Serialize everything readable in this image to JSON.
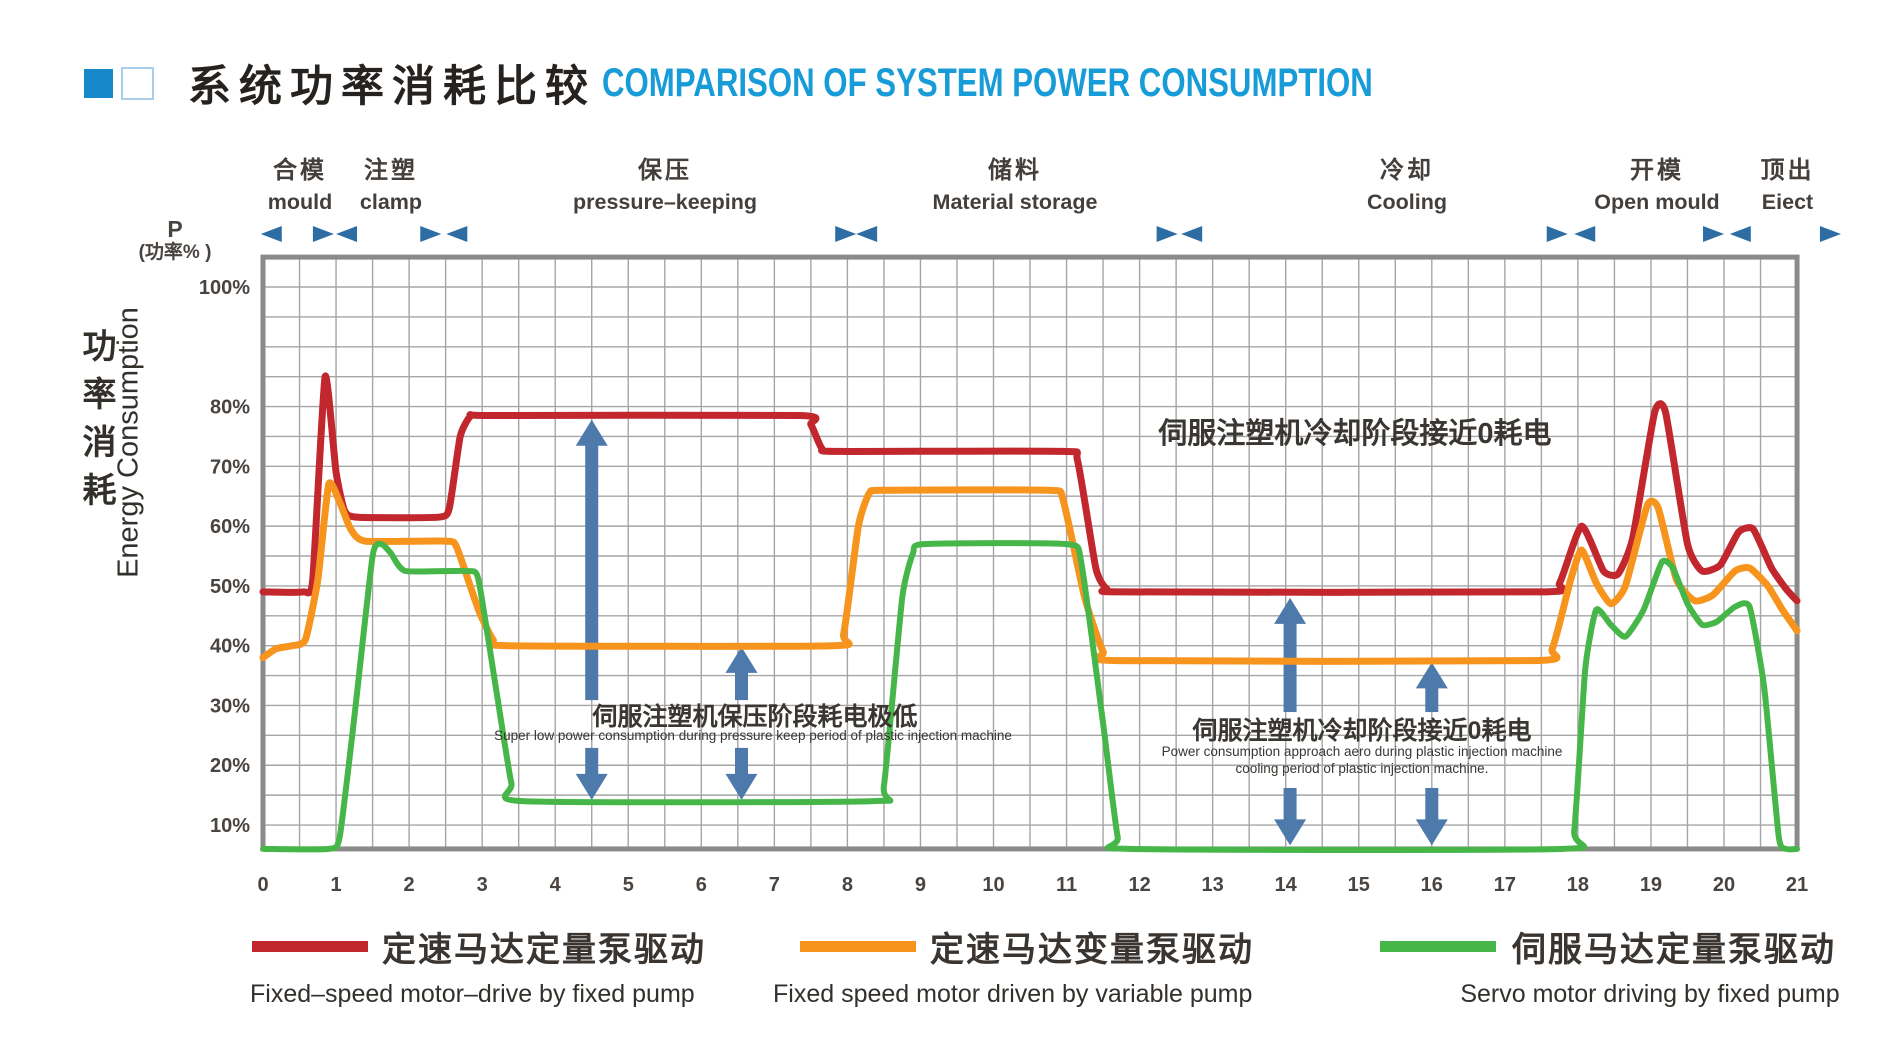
{
  "title": {
    "zh": "系统功率消耗比较",
    "en": "COMPARISON OF SYSTEM POWER CONSUMPTION"
  },
  "axes": {
    "y_symbol": "P",
    "y_unit_label": "(功率% )",
    "y_axis_zh": "功率消耗",
    "y_axis_en": "Energy Consumption",
    "y_ticks": [
      {
        "p": 100,
        "label": "100%"
      },
      {
        "p": 80,
        "label": "80%"
      },
      {
        "p": 70,
        "label": "70%"
      },
      {
        "p": 60,
        "label": "60%"
      },
      {
        "p": 50,
        "label": "50%"
      },
      {
        "p": 40,
        "label": "40%"
      },
      {
        "p": 30,
        "label": "30%"
      },
      {
        "p": 20,
        "label": "20%"
      },
      {
        "p": 10,
        "label": "10%"
      }
    ],
    "x_ticks": [
      0,
      1,
      2,
      3,
      4,
      5,
      6,
      7,
      8,
      9,
      10,
      11,
      12,
      13,
      14,
      15,
      16,
      17,
      18,
      19,
      20,
      21
    ]
  },
  "chart_data": {
    "type": "line",
    "title_zh": "系统功率消耗比较",
    "title_en": "COMPARISON OF SYSTEM POWER CONSUMPTION",
    "xlabel": "",
    "ylabel_zh": "功率消耗",
    "ylabel_en": "Energy Consumption",
    "y_unit": "P (功率%)",
    "xlim": [
      0,
      21
    ],
    "ylim_percent": [
      5,
      105
    ],
    "grid": true,
    "legend_position": "bottom",
    "phases": [
      {
        "zh": "合模",
        "en": "mould",
        "span": [
          0,
          1
        ]
      },
      {
        "zh": "注塑",
        "en": "clamp",
        "span": [
          1,
          2.5
        ]
      },
      {
        "zh": "保压",
        "en": "pressure–keeping",
        "span": [
          2.5,
          8.1
        ]
      },
      {
        "zh": "储料",
        "en": "Material storage",
        "span": [
          8.1,
          12.5
        ]
      },
      {
        "zh": "冷却",
        "en": "Cooling",
        "span": [
          12.5,
          17.9
        ]
      },
      {
        "zh": "开模",
        "en": "Open mould",
        "span": [
          17.9,
          20.05
        ]
      },
      {
        "zh": "顶出",
        "en": "Eiect",
        "span": [
          20.05,
          21
        ]
      }
    ],
    "series": [
      {
        "name_zh": "定速马达定量泵驱动",
        "name_en": "Fixed–speed motor–drive by fixed pump",
        "color": "#c1272d",
        "points": [
          [
            0,
            49
          ],
          [
            0.55,
            49
          ],
          [
            0.68,
            51
          ],
          [
            0.85,
            85
          ],
          [
            1.0,
            69
          ],
          [
            1.12,
            62.5
          ],
          [
            1.3,
            61.5
          ],
          [
            2.4,
            61.5
          ],
          [
            2.55,
            63
          ],
          [
            2.7,
            75
          ],
          [
            2.85,
            78.5
          ],
          [
            3.1,
            78.5
          ],
          [
            7.35,
            78.5
          ],
          [
            7.5,
            77
          ],
          [
            7.65,
            73
          ],
          [
            7.85,
            72.5
          ],
          [
            10.95,
            72.5
          ],
          [
            11.15,
            71
          ],
          [
            11.4,
            53
          ],
          [
            11.55,
            49.5
          ],
          [
            11.8,
            49
          ],
          [
            17.5,
            49
          ],
          [
            17.75,
            50.5
          ],
          [
            18.05,
            60
          ],
          [
            18.35,
            52.5
          ],
          [
            18.55,
            52
          ],
          [
            18.75,
            58
          ],
          [
            19.05,
            79
          ],
          [
            19.2,
            79
          ],
          [
            19.5,
            57
          ],
          [
            19.7,
            52.5
          ],
          [
            19.95,
            53.5
          ],
          [
            20.2,
            59
          ],
          [
            20.4,
            59.5
          ],
          [
            20.65,
            53
          ],
          [
            20.85,
            49.5
          ],
          [
            21,
            47.5
          ]
        ]
      },
      {
        "name_zh": "定速马达变量泵驱动",
        "name_en": "Fixed speed motor driven by variable pump",
        "color": "#f7941d",
        "points": [
          [
            0,
            38
          ],
          [
            0.18,
            39.5
          ],
          [
            0.4,
            40
          ],
          [
            0.58,
            41
          ],
          [
            0.75,
            51
          ],
          [
            0.9,
            67
          ],
          [
            1.05,
            64
          ],
          [
            1.2,
            59.5
          ],
          [
            1.4,
            57.5
          ],
          [
            2.5,
            57.5
          ],
          [
            2.65,
            56.5
          ],
          [
            2.95,
            46
          ],
          [
            3.15,
            41
          ],
          [
            3.35,
            40
          ],
          [
            7.8,
            40
          ],
          [
            7.95,
            42
          ],
          [
            8.15,
            60
          ],
          [
            8.3,
            65.5
          ],
          [
            8.5,
            66
          ],
          [
            10.75,
            66
          ],
          [
            10.95,
            64.5
          ],
          [
            11.25,
            48
          ],
          [
            11.5,
            39
          ],
          [
            11.7,
            37.5
          ],
          [
            17.4,
            37.5
          ],
          [
            17.65,
            39.5
          ],
          [
            17.9,
            51
          ],
          [
            18.05,
            56
          ],
          [
            18.25,
            50.5
          ],
          [
            18.45,
            47
          ],
          [
            18.65,
            50
          ],
          [
            18.95,
            63.5
          ],
          [
            19.1,
            63
          ],
          [
            19.35,
            51
          ],
          [
            19.6,
            47.5
          ],
          [
            19.85,
            48.5
          ],
          [
            20.15,
            52.5
          ],
          [
            20.35,
            53
          ],
          [
            20.6,
            50
          ],
          [
            20.8,
            46
          ],
          [
            21,
            42.5
          ]
        ]
      },
      {
        "name_zh": "伺服马达定量泵驱动",
        "name_en": "Servo motor driving by fixed pump",
        "color": "#47b649",
        "points": [
          [
            0,
            6
          ],
          [
            0.9,
            6
          ],
          [
            1.05,
            8
          ],
          [
            1.25,
            28
          ],
          [
            1.5,
            55
          ],
          [
            1.62,
            57
          ],
          [
            1.75,
            55.5
          ],
          [
            1.95,
            52.5
          ],
          [
            2.8,
            52.5
          ],
          [
            2.95,
            51
          ],
          [
            3.2,
            32
          ],
          [
            3.4,
            17
          ],
          [
            3.55,
            14
          ],
          [
            8.35,
            14
          ],
          [
            8.5,
            16.5
          ],
          [
            8.75,
            48
          ],
          [
            8.9,
            55.5
          ],
          [
            9.05,
            57
          ],
          [
            11.0,
            57
          ],
          [
            11.2,
            54
          ],
          [
            11.5,
            27
          ],
          [
            11.7,
            8
          ],
          [
            11.85,
            6
          ],
          [
            17.8,
            6
          ],
          [
            17.95,
            9
          ],
          [
            18.1,
            36
          ],
          [
            18.25,
            46
          ],
          [
            18.45,
            43.5
          ],
          [
            18.65,
            41.5
          ],
          [
            18.9,
            46
          ],
          [
            19.15,
            54
          ],
          [
            19.3,
            53
          ],
          [
            19.5,
            47
          ],
          [
            19.7,
            43.5
          ],
          [
            19.9,
            44
          ],
          [
            20.15,
            46.5
          ],
          [
            20.35,
            46.5
          ],
          [
            20.55,
            33
          ],
          [
            20.75,
            8
          ],
          [
            20.85,
            6
          ],
          [
            21,
            6
          ]
        ]
      }
    ],
    "annotations": [
      {
        "zh": "伺服注塑机冷却阶段接近0耗电",
        "en": ""
      },
      {
        "zh": "伺服注塑机保压阶段耗电极低",
        "en": "Super low power consumption during pressure keep period of plastic injection machine"
      },
      {
        "zh": "伺服注塑机冷却阶段接近0耗电",
        "en": "Power consumption approach aero during plastic injection machine cooling period of plastic injection machine."
      }
    ]
  },
  "arrows": {
    "color": "#4d7aab",
    "items": [
      {
        "u": 4.5,
        "upper": [
          77.8,
          30.9
        ],
        "lower": [
          22.9,
          14.2
        ]
      },
      {
        "u": 6.55,
        "upper": [
          39.8,
          30.9
        ],
        "lower": [
          22.9,
          14.2
        ]
      },
      {
        "u": 14.06,
        "upper": [
          48.0,
          28.9
        ],
        "lower": [
          16.2,
          6.6
        ]
      },
      {
        "u": 16.0,
        "upper": [
          37.2,
          28.9
        ],
        "lower": [
          16.2,
          6.6
        ]
      }
    ]
  },
  "boundary_markers": {
    "color": "#2e6da4",
    "items": [
      {
        "u": 0.12,
        "d": "left"
      },
      {
        "u": 0.82,
        "d": "right"
      },
      {
        "u": 1.15,
        "d": "left"
      },
      {
        "u": 2.29,
        "d": "right"
      },
      {
        "u": 2.66,
        "d": "left"
      },
      {
        "u": 7.97,
        "d": "right"
      },
      {
        "u": 8.27,
        "d": "left"
      },
      {
        "u": 12.37,
        "d": "right"
      },
      {
        "u": 12.72,
        "d": "left"
      },
      {
        "u": 17.71,
        "d": "right"
      },
      {
        "u": 18.1,
        "d": "left"
      },
      {
        "u": 19.85,
        "d": "right"
      },
      {
        "u": 20.23,
        "d": "left"
      },
      {
        "u": 21.45,
        "d": "right"
      }
    ]
  },
  "colors": {
    "title_accent": "#189cd8",
    "grid": "#a5a5a5",
    "border": "#8a8a8a",
    "text": "#4a4440"
  }
}
